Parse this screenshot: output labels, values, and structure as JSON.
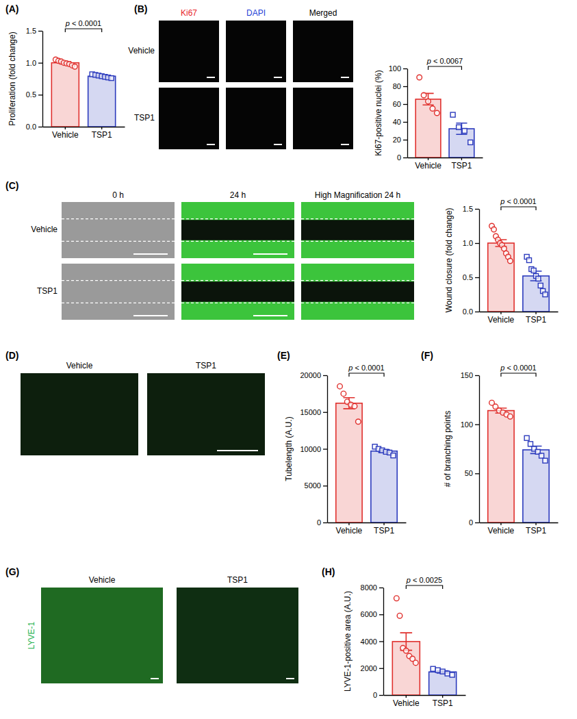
{
  "chart_data": [
    {
      "type": "bar",
      "ylabel": "Proliferation (fold change)",
      "categories": [
        "Vehicle",
        "TSP1"
      ],
      "values": [
        1.0,
        0.79
      ],
      "errors": [
        0.018,
        0.009
      ],
      "points": [
        [
          1.05,
          1.03,
          1.02,
          1.0,
          0.99,
          0.98,
          0.96,
          0.94
        ],
        [
          0.82,
          0.81,
          0.8,
          0.79,
          0.78,
          0.77,
          0.76
        ]
      ],
      "colors": [
        "#e0302d",
        "#2c3bbd"
      ],
      "annotation": "p < 0.0001",
      "ylim": [
        0,
        1.5
      ],
      "yticks": [
        {
          "value": 0,
          "label": "0.0"
        },
        {
          "value": 0.5,
          "label": "0.5"
        },
        {
          "value": 1,
          "label": "1.0"
        },
        {
          "value": 1.5,
          "label": "1.5"
        }
      ]
    },
    {
      "type": "bar",
      "ylabel": "Ki67-positive nuclei (%)",
      "categories": [
        "Vehicle",
        "TSP1"
      ],
      "values": [
        65.5,
        32.3
      ],
      "errors": [
        6.5,
        6.3
      ],
      "points": [
        [
          90,
          70,
          63,
          55,
          50
        ],
        [
          48,
          34,
          30,
          17
        ]
      ],
      "colors": [
        "#e0302d",
        "#2c3bbd"
      ],
      "annotation": "p < 0.0067",
      "ylim": [
        0,
        100
      ],
      "yticks": [
        0,
        20,
        40,
        60,
        80,
        100
      ]
    },
    {
      "type": "bar",
      "ylabel": "Wound closure (fold change)",
      "categories": [
        "Vehicle",
        "TSP1"
      ],
      "values": [
        1.0,
        0.52
      ],
      "errors": [
        0.05,
        0.07
      ],
      "points": [
        [
          1.25,
          1.2,
          1.1,
          1.05,
          1.0,
          0.97,
          0.92,
          0.85,
          0.8,
          0.74
        ],
        [
          0.8,
          0.75,
          0.62,
          0.6,
          0.52,
          0.48,
          0.38,
          0.3,
          0.25
        ]
      ],
      "colors": [
        "#e0302d",
        "#2c3bbd"
      ],
      "annotation": "p < 0.0001",
      "ylim": [
        0,
        1.5
      ],
      "yticks": [
        {
          "value": 0,
          "label": "0.0"
        },
        {
          "value": 0.5,
          "label": "0.5"
        },
        {
          "value": 1,
          "label": "1.0"
        },
        {
          "value": 1.5,
          "label": "1.5"
        }
      ]
    },
    {
      "type": "bar",
      "ylabel": "Tubelength (A.U.)",
      "categories": [
        "Vehicle",
        "TSP1"
      ],
      "values": [
        16200,
        9700
      ],
      "errors": [
        750,
        200
      ],
      "points": [
        [
          18500,
          17500,
          16400,
          16000,
          15800,
          13700
        ],
        [
          10300,
          10000,
          9800,
          9600,
          9500,
          9100
        ]
      ],
      "colors": [
        "#e0302d",
        "#2c3bbd"
      ],
      "annotation": "p < 0.0001",
      "ylim": [
        0,
        20000
      ],
      "yticks": [
        0,
        5000,
        10000,
        15000,
        20000
      ]
    },
    {
      "type": "bar",
      "ylabel": "# of branching points",
      "categories": [
        "Vehicle",
        "TSP1"
      ],
      "values": [
        114,
        74
      ],
      "errors": [
        2.5,
        3.8
      ],
      "points": [
        [
          122,
          118,
          114,
          112,
          110,
          108
        ],
        [
          86,
          80,
          75,
          72,
          68,
          63
        ]
      ],
      "colors": [
        "#e0302d",
        "#2c3bbd"
      ],
      "annotation": "p < 0.0001",
      "ylim": [
        0,
        150
      ],
      "yticks": [
        0,
        50,
        100,
        150
      ]
    },
    {
      "type": "bar",
      "ylabel": "LYVE-1-positive area (A.U.)",
      "categories": [
        "Vehicle",
        "TSP1"
      ],
      "values": [
        3980,
        1720
      ],
      "errors": [
        650,
        90
      ],
      "points": [
        [
          7200,
          5900,
          3500,
          3300,
          2900,
          2700,
          2400
        ],
        [
          1950,
          1850,
          1750,
          1600,
          1500
        ]
      ],
      "colors": [
        "#e0302d",
        "#2c3bbd"
      ],
      "annotation": "p < 0.0025",
      "ylim": [
        0,
        8000
      ],
      "yticks": [
        0,
        2000,
        4000,
        6000,
        8000
      ]
    }
  ],
  "panel_labels": [
    "(A)",
    "(B)",
    "(C)",
    "(D)",
    "(E)",
    "(F)",
    "(G)",
    "(H)"
  ],
  "image_panels": [
    {
      "columns": [
        "Ki67",
        "DAPI",
        "Merged"
      ],
      "colors": [
        "#e8262b",
        "#1f3fd6",
        "#000000"
      ],
      "rows": [
        "Vehicle",
        "TSP1"
      ]
    },
    {
      "columns": [
        "0 h",
        "24 h",
        "High Magnification 24 h"
      ],
      "rows": [
        "Vehicle",
        "TSP1"
      ]
    },
    {
      "columns": [
        "Vehicle",
        "TSP1"
      ]
    },
    {
      "columns": [
        "Vehicle",
        "TSP1"
      ],
      "rows": [
        "LYVE-1"
      ],
      "colors": [
        "#22b14c"
      ]
    }
  ]
}
